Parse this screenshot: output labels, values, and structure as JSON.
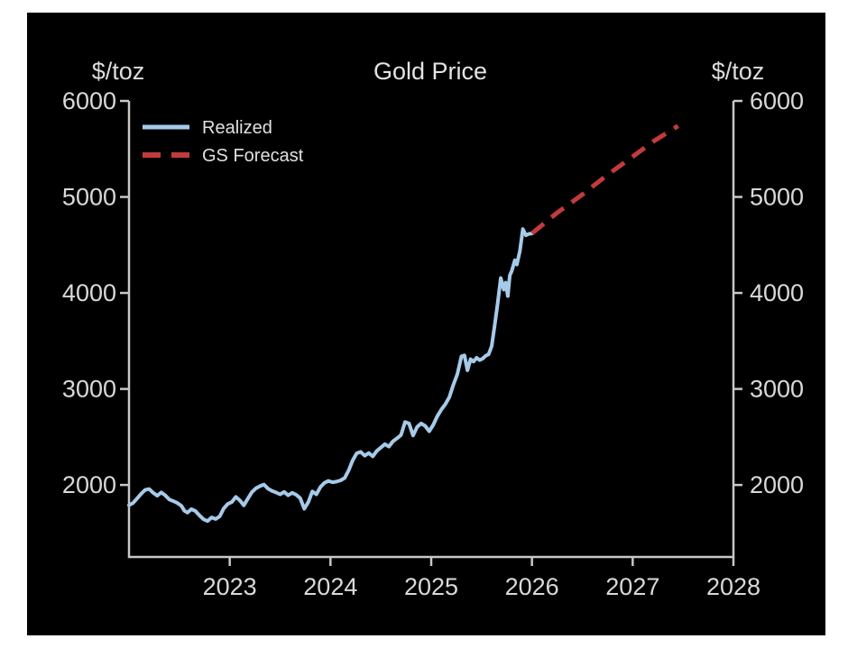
{
  "window": {
    "page_background": "#ffffff",
    "panel_background": "#000000"
  },
  "chart_data": {
    "type": "line",
    "title": "Gold Price",
    "left_axis_unit": "$/toz",
    "right_axis_unit": "$/toz",
    "xlabel": "",
    "ylabel": "",
    "xlim": [
      2022,
      2028
    ],
    "ylim": [
      1250,
      6000
    ],
    "grid": false,
    "legend_position": "top-left",
    "axis_color": "#c8c8c8",
    "tick_label_color": "#d9d9d9",
    "x_ticks": [
      {
        "label": "2023",
        "value": 2023
      },
      {
        "label": "2024",
        "value": 2024
      },
      {
        "label": "2025",
        "value": 2025
      },
      {
        "label": "2026",
        "value": 2026
      },
      {
        "label": "2027",
        "value": 2027
      },
      {
        "label": "2028",
        "value": 2028
      }
    ],
    "y_ticks": [
      {
        "label": "6000",
        "value": 6000
      },
      {
        "label": "5000",
        "value": 5000
      },
      {
        "label": "4000",
        "value": 4000
      },
      {
        "label": "3000",
        "value": 3000
      },
      {
        "label": "2000",
        "value": 2000
      }
    ],
    "series": [
      {
        "name": "Realized",
        "style": "solid",
        "color": "#a6cae9",
        "width": 4,
        "points": [
          [
            2022.0,
            1790
          ],
          [
            2022.04,
            1812
          ],
          [
            2022.08,
            1858
          ],
          [
            2022.12,
            1908
          ],
          [
            2022.16,
            1948
          ],
          [
            2022.2,
            1958
          ],
          [
            2022.24,
            1918
          ],
          [
            2022.28,
            1888
          ],
          [
            2022.32,
            1922
          ],
          [
            2022.36,
            1892
          ],
          [
            2022.4,
            1848
          ],
          [
            2022.44,
            1832
          ],
          [
            2022.48,
            1812
          ],
          [
            2022.52,
            1782
          ],
          [
            2022.55,
            1732
          ],
          [
            2022.58,
            1712
          ],
          [
            2022.62,
            1748
          ],
          [
            2022.66,
            1728
          ],
          [
            2022.7,
            1682
          ],
          [
            2022.74,
            1642
          ],
          [
            2022.78,
            1625
          ],
          [
            2022.82,
            1662
          ],
          [
            2022.86,
            1645
          ],
          [
            2022.9,
            1672
          ],
          [
            2022.94,
            1755
          ],
          [
            2022.98,
            1802
          ],
          [
            2023.02,
            1822
          ],
          [
            2023.06,
            1875
          ],
          [
            2023.1,
            1840
          ],
          [
            2023.14,
            1788
          ],
          [
            2023.18,
            1858
          ],
          [
            2023.22,
            1925
          ],
          [
            2023.26,
            1965
          ],
          [
            2023.3,
            1988
          ],
          [
            2023.34,
            2005
          ],
          [
            2023.38,
            1962
          ],
          [
            2023.42,
            1938
          ],
          [
            2023.46,
            1922
          ],
          [
            2023.5,
            1902
          ],
          [
            2023.54,
            1928
          ],
          [
            2023.58,
            1892
          ],
          [
            2023.62,
            1918
          ],
          [
            2023.66,
            1898
          ],
          [
            2023.7,
            1862
          ],
          [
            2023.74,
            1752
          ],
          [
            2023.78,
            1822
          ],
          [
            2023.82,
            1932
          ],
          [
            2023.86,
            1902
          ],
          [
            2023.9,
            1978
          ],
          [
            2023.94,
            2022
          ],
          [
            2023.98,
            2042
          ],
          [
            2024.02,
            2028
          ],
          [
            2024.06,
            2035
          ],
          [
            2024.1,
            2048
          ],
          [
            2024.14,
            2072
          ],
          [
            2024.18,
            2150
          ],
          [
            2024.22,
            2255
          ],
          [
            2024.26,
            2330
          ],
          [
            2024.3,
            2345
          ],
          [
            2024.34,
            2305
          ],
          [
            2024.38,
            2332
          ],
          [
            2024.42,
            2298
          ],
          [
            2024.46,
            2355
          ],
          [
            2024.5,
            2390
          ],
          [
            2024.54,
            2425
          ],
          [
            2024.58,
            2400
          ],
          [
            2024.62,
            2455
          ],
          [
            2024.66,
            2485
          ],
          [
            2024.7,
            2520
          ],
          [
            2024.74,
            2655
          ],
          [
            2024.78,
            2640
          ],
          [
            2024.82,
            2515
          ],
          [
            2024.86,
            2605
          ],
          [
            2024.9,
            2640
          ],
          [
            2024.94,
            2615
          ],
          [
            2024.98,
            2560
          ],
          [
            2025.02,
            2625
          ],
          [
            2025.06,
            2715
          ],
          [
            2025.1,
            2785
          ],
          [
            2025.14,
            2840
          ],
          [
            2025.18,
            2915
          ],
          [
            2025.22,
            3045
          ],
          [
            2025.26,
            3155
          ],
          [
            2025.3,
            3340
          ],
          [
            2025.33,
            3350
          ],
          [
            2025.36,
            3195
          ],
          [
            2025.39,
            3310
          ],
          [
            2025.42,
            3285
          ],
          [
            2025.45,
            3325
          ],
          [
            2025.48,
            3300
          ],
          [
            2025.51,
            3315
          ],
          [
            2025.54,
            3345
          ],
          [
            2025.57,
            3360
          ],
          [
            2025.6,
            3445
          ],
          [
            2025.63,
            3665
          ],
          [
            2025.66,
            3895
          ],
          [
            2025.69,
            4155
          ],
          [
            2025.72,
            4035
          ],
          [
            2025.74,
            4108
          ],
          [
            2025.76,
            3968
          ],
          [
            2025.78,
            4182
          ],
          [
            2025.8,
            4230
          ],
          [
            2025.83,
            4340
          ],
          [
            2025.85,
            4295
          ],
          [
            2025.88,
            4438
          ],
          [
            2025.91,
            4665
          ],
          [
            2025.94,
            4600
          ],
          [
            2025.97,
            4615
          ],
          [
            2026.0,
            4620
          ]
        ]
      },
      {
        "name": "GS Forecast",
        "style": "dashed",
        "color": "#c23b3c",
        "width": 5,
        "points": [
          [
            2026.0,
            4620
          ],
          [
            2026.25,
            4835
          ],
          [
            2026.5,
            5025
          ],
          [
            2026.75,
            5230
          ],
          [
            2027.0,
            5420
          ],
          [
            2027.2,
            5575
          ],
          [
            2027.45,
            5740
          ]
        ]
      }
    ]
  }
}
